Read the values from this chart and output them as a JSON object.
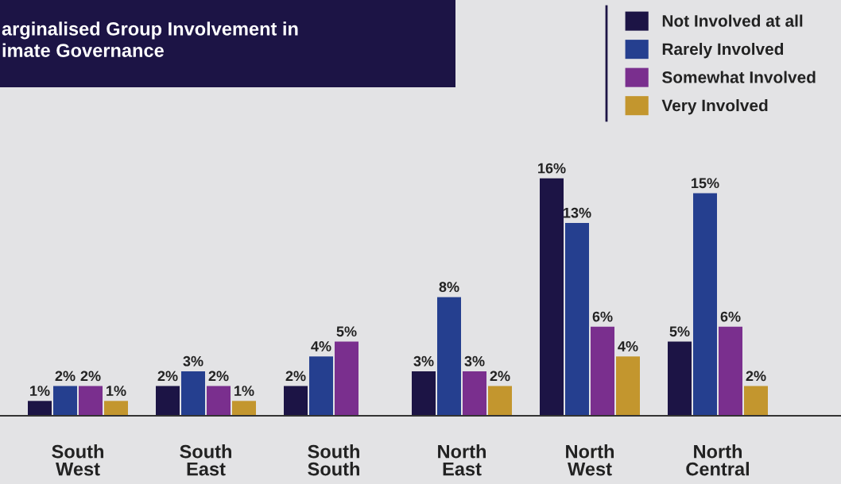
{
  "chart_data": {
    "type": "bar",
    "title": "arginalised Group Involvement in\nimate Governance",
    "categories": [
      "South\nWest",
      "South\nEast",
      "South\nSouth",
      "North\nEast",
      "North\nWest",
      "North\nCentral"
    ],
    "series": [
      {
        "name": "Not Involved at all",
        "color": "#1c1445",
        "values": [
          1,
          2,
          2,
          3,
          16,
          5
        ],
        "value_labels": [
          "1%",
          "2%",
          "2%",
          "3%",
          "16%",
          "5%"
        ]
      },
      {
        "name": "Rarely Involved",
        "color": "#253f8f",
        "values": [
          2,
          3,
          4,
          8,
          13,
          15
        ],
        "value_labels": [
          "2%",
          "3%",
          "4%",
          "8%",
          "13%",
          "15%"
        ]
      },
      {
        "name": "Somewhat Involved",
        "color": "#7a2f8e",
        "values": [
          2,
          2,
          5,
          3,
          6,
          6
        ],
        "value_labels": [
          "2%",
          "2%",
          "5%",
          "3%",
          "6%",
          "6%"
        ]
      },
      {
        "name": "Very Involved",
        "color": "#c3962e",
        "values": [
          1,
          1,
          0,
          2,
          4,
          2
        ],
        "value_labels": [
          "1%",
          "1%",
          null,
          "2%",
          "4%",
          "2%"
        ]
      }
    ],
    "legend": "top right"
  }
}
